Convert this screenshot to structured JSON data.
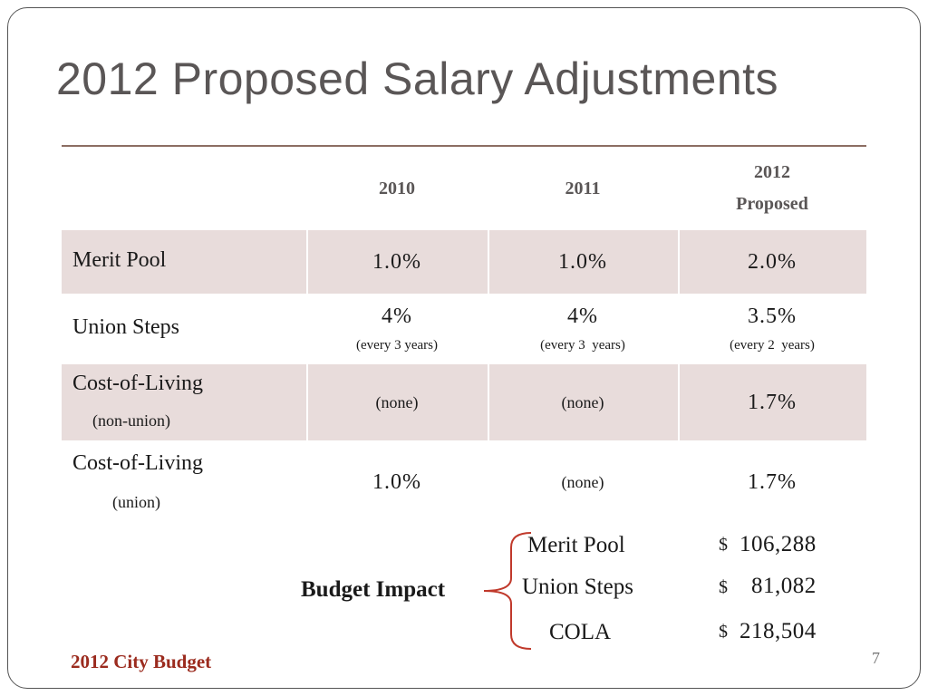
{
  "title": "2012 Proposed Salary Adjustments",
  "table": {
    "headers": [
      "",
      "2010",
      "2011",
      "2012",
      "Proposed"
    ],
    "rows": [
      {
        "label": "Merit Pool",
        "sub_label": "",
        "v2010": "1.0%",
        "v2011": "1.0%",
        "v2012": "2.0%"
      },
      {
        "label": "Union Steps",
        "sub_label": "",
        "v2010": "4%",
        "n2010": "(every 3 years)",
        "v2011": "4%",
        "n2011": "(every 3  years)",
        "v2012": "3.5%",
        "n2012": "(every 2  years)"
      },
      {
        "label": "Cost-of-Living",
        "sub_label": "(non-union)",
        "v2010": "(none)",
        "v2011": "(none)",
        "v2012": "1.7%"
      },
      {
        "label": "Cost-of-Living",
        "sub_label": "(union)",
        "v2010": "1.0%",
        "v2011": "(none)",
        "v2012": "1.7%"
      }
    ]
  },
  "budget_impact": {
    "label": "Budget Impact",
    "items": [
      {
        "name": "Merit Pool",
        "currency": "$",
        "amount": "106,288"
      },
      {
        "name": "Union Steps",
        "currency": "$",
        "amount": "81,082"
      },
      {
        "name": "COLA",
        "currency": "$",
        "amount": "218,504"
      }
    ]
  },
  "footer": "2012 City Budget",
  "page_number": "7",
  "colors": {
    "title": "#5a5656",
    "shade": "#e8dcdb",
    "rule": "#8c6e63",
    "footer": "#9b2b1e",
    "brace": "#c0392b"
  }
}
